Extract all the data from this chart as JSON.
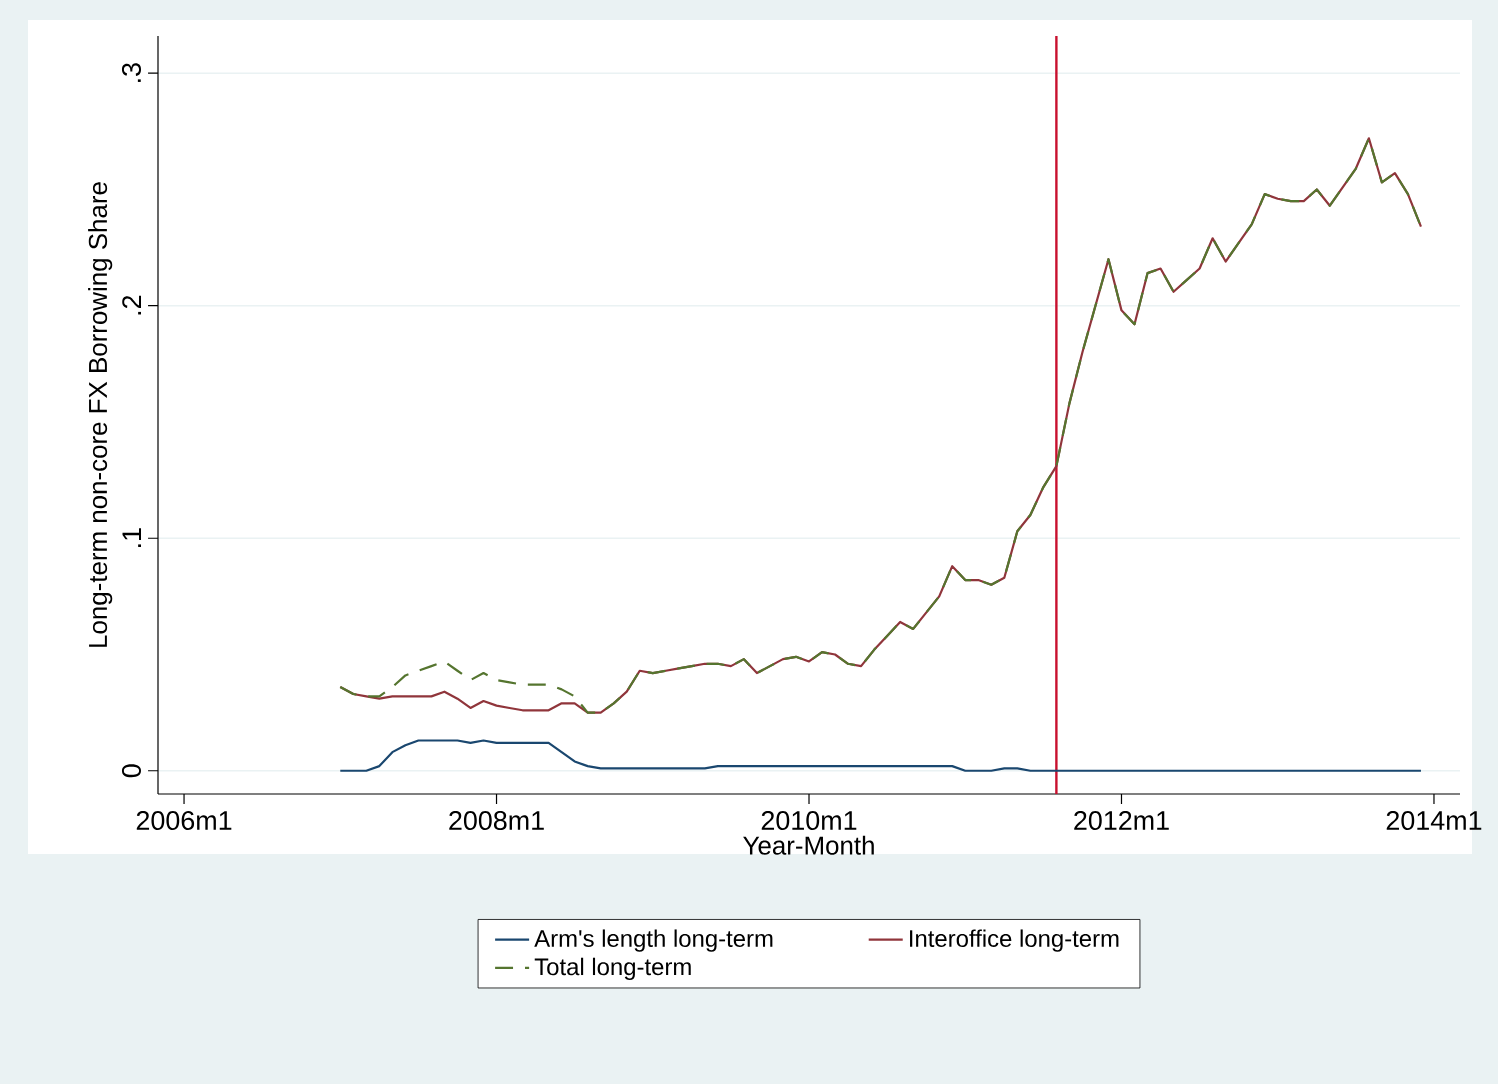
{
  "chart_data": {
    "type": "line",
    "xlabel": "Year-Month",
    "ylabel": "Long-term non-core FX Borrowing Share",
    "x": [
      "2007-01",
      "2007-02",
      "2007-03",
      "2007-04",
      "2007-05",
      "2007-06",
      "2007-07",
      "2007-08",
      "2007-09",
      "2007-10",
      "2007-11",
      "2007-12",
      "2008-01",
      "2008-02",
      "2008-03",
      "2008-04",
      "2008-05",
      "2008-06",
      "2008-07",
      "2008-08",
      "2008-09",
      "2008-10",
      "2008-11",
      "2008-12",
      "2009-01",
      "2009-02",
      "2009-03",
      "2009-04",
      "2009-05",
      "2009-06",
      "2009-07",
      "2009-08",
      "2009-09",
      "2009-10",
      "2009-11",
      "2009-12",
      "2010-01",
      "2010-02",
      "2010-03",
      "2010-04",
      "2010-05",
      "2010-06",
      "2010-07",
      "2010-08",
      "2010-09",
      "2010-10",
      "2010-11",
      "2010-12",
      "2011-01",
      "2011-02",
      "2011-03",
      "2011-04",
      "2011-05",
      "2011-06",
      "2011-07",
      "2011-08",
      "2011-09",
      "2011-10",
      "2011-11",
      "2011-12",
      "2012-01",
      "2012-02",
      "2012-03",
      "2012-04",
      "2012-05",
      "2012-06",
      "2012-07",
      "2012-08",
      "2012-09",
      "2012-10",
      "2012-11",
      "2012-12",
      "2013-01",
      "2013-02",
      "2013-03",
      "2013-04",
      "2013-05",
      "2013-06",
      "2013-07",
      "2013-08",
      "2013-09",
      "2013-10",
      "2013-11",
      "2013-12"
    ],
    "series": [
      {
        "name": "Arm's length long-term",
        "color": "#1a476f",
        "line_style": "solid",
        "values": [
          0,
          0,
          0,
          0.002,
          0.008,
          0.011,
          0.013,
          0.013,
          0.013,
          0.013,
          0.012,
          0.013,
          0.012,
          0.012,
          0.012,
          0.012,
          0.012,
          0.008,
          0.004,
          0.002,
          0.001,
          0.001,
          0.001,
          0.001,
          0.001,
          0.001,
          0.001,
          0.001,
          0.001,
          0.002,
          0.002,
          0.002,
          0.002,
          0.002,
          0.002,
          0.002,
          0.002,
          0.002,
          0.002,
          0.002,
          0.002,
          0.002,
          0.002,
          0.002,
          0.002,
          0.002,
          0.002,
          0.002,
          0,
          0,
          0,
          0.001,
          0.001,
          0,
          0,
          0,
          0,
          0,
          0,
          0,
          0,
          0,
          0,
          0,
          0,
          0,
          0,
          0,
          0,
          0,
          0,
          0,
          0,
          0,
          0,
          0,
          0,
          0,
          0,
          0,
          0,
          0,
          0,
          0
        ]
      },
      {
        "name": "Interoffice long-term",
        "color": "#90353b",
        "line_style": "solid",
        "values": [
          0.036,
          0.033,
          0.032,
          0.031,
          0.032,
          0.032,
          0.032,
          0.032,
          0.034,
          0.031,
          0.027,
          0.03,
          0.028,
          0.027,
          0.026,
          0.026,
          0.026,
          0.029,
          0.029,
          0.025,
          0.025,
          0.029,
          0.034,
          0.043,
          0.042,
          0.043,
          0.044,
          0.045,
          0.046,
          0.046,
          0.045,
          0.048,
          0.042,
          0.045,
          0.048,
          0.049,
          0.047,
          0.051,
          0.05,
          0.046,
          0.045,
          0.052,
          0.058,
          0.064,
          0.061,
          0.068,
          0.075,
          0.088,
          0.082,
          0.082,
          0.08,
          0.083,
          0.103,
          0.11,
          0.122,
          0.131,
          0.158,
          0.18,
          0.2,
          0.22,
          0.198,
          0.192,
          0.214,
          0.216,
          0.206,
          0.211,
          0.216,
          0.229,
          0.219,
          0.227,
          0.235,
          0.248,
          0.246,
          0.245,
          0.245,
          0.25,
          0.243,
          0.251,
          0.259,
          0.272,
          0.253,
          0.257,
          0.248,
          0.234
        ]
      },
      {
        "name": "Total long-term",
        "color": "#55752f",
        "line_style": "dashed",
        "values": [
          0.036,
          0.033,
          0.032,
          0.032,
          0.036,
          0.041,
          0.043,
          0.045,
          0.047,
          0.043,
          0.039,
          0.042,
          0.039,
          0.038,
          0.037,
          0.037,
          0.037,
          0.035,
          0.032,
          0.025,
          0.025,
          0.029,
          0.034,
          0.043,
          0.042,
          0.043,
          0.044,
          0.045,
          0.046,
          0.046,
          0.045,
          0.048,
          0.042,
          0.045,
          0.048,
          0.049,
          0.047,
          0.051,
          0.05,
          0.046,
          0.045,
          0.052,
          0.058,
          0.064,
          0.061,
          0.068,
          0.075,
          0.088,
          0.082,
          0.082,
          0.08,
          0.083,
          0.103,
          0.11,
          0.122,
          0.131,
          0.158,
          0.18,
          0.2,
          0.22,
          0.198,
          0.192,
          0.214,
          0.216,
          0.206,
          0.211,
          0.216,
          0.229,
          0.219,
          0.227,
          0.235,
          0.248,
          0.246,
          0.245,
          0.245,
          0.25,
          0.243,
          0.251,
          0.259,
          0.272,
          0.253,
          0.257,
          0.248,
          0.234
        ]
      }
    ],
    "xlim": [
      "2005-11",
      "2014-03"
    ],
    "xticks": [
      {
        "value": "2006-01",
        "label": "2006m1"
      },
      {
        "value": "2008-01",
        "label": "2008m1"
      },
      {
        "value": "2010-01",
        "label": "2010m1"
      },
      {
        "value": "2012-01",
        "label": "2012m1"
      },
      {
        "value": "2014-01",
        "label": "2014m1"
      }
    ],
    "ylim": [
      -0.01,
      0.316
    ],
    "yticks": [
      0,
      {
        "value": 0.1,
        "label": ".1"
      },
      {
        "value": 0.2,
        "label": ".2"
      },
      {
        "value": 0.3,
        "label": ".3"
      }
    ],
    "ref_lines": [
      {
        "axis": "x",
        "value": "2011-08",
        "color": "#c8102e"
      }
    ],
    "grid": "y",
    "legend": "bottom"
  }
}
